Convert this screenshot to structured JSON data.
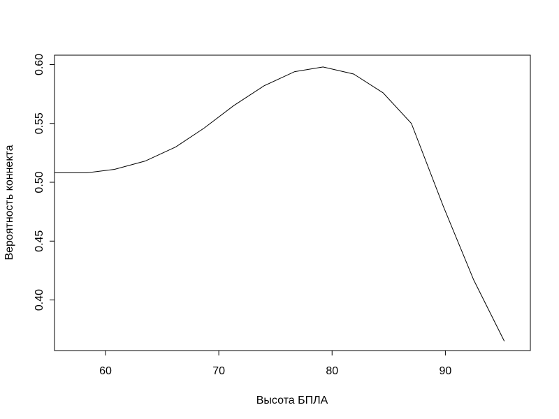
{
  "chart_data": {
    "type": "line",
    "title": "",
    "xlabel": "Высота БПЛА",
    "ylabel": "Вероятность коннекта",
    "xlim": [
      55.5,
      97.5
    ],
    "ylim": [
      0.357,
      0.608
    ],
    "x_ticks": [
      60,
      70,
      80,
      90
    ],
    "x_tick_labels": [
      "60",
      "70",
      "80",
      "90"
    ],
    "y_ticks": [
      0.4,
      0.45,
      0.5,
      0.55,
      0.6
    ],
    "y_tick_labels": [
      "0.40",
      "0.45",
      "0.50",
      "0.55",
      "0.60"
    ],
    "grid": false,
    "series": [
      {
        "x": [
          55.5,
          58.3,
          60.8,
          63.5,
          66.2,
          68.7,
          71.3,
          74.0,
          76.7,
          79.2,
          81.9,
          84.5,
          87.0,
          89.8,
          92.5,
          95.2
        ],
        "y": [
          0.508,
          0.508,
          0.511,
          0.518,
          0.53,
          0.546,
          0.565,
          0.582,
          0.594,
          0.598,
          0.592,
          0.576,
          0.55,
          0.48,
          0.417,
          0.365
        ]
      }
    ],
    "colors": {
      "line": "#000000",
      "axis": "#000000",
      "background": "#ffffff"
    }
  }
}
